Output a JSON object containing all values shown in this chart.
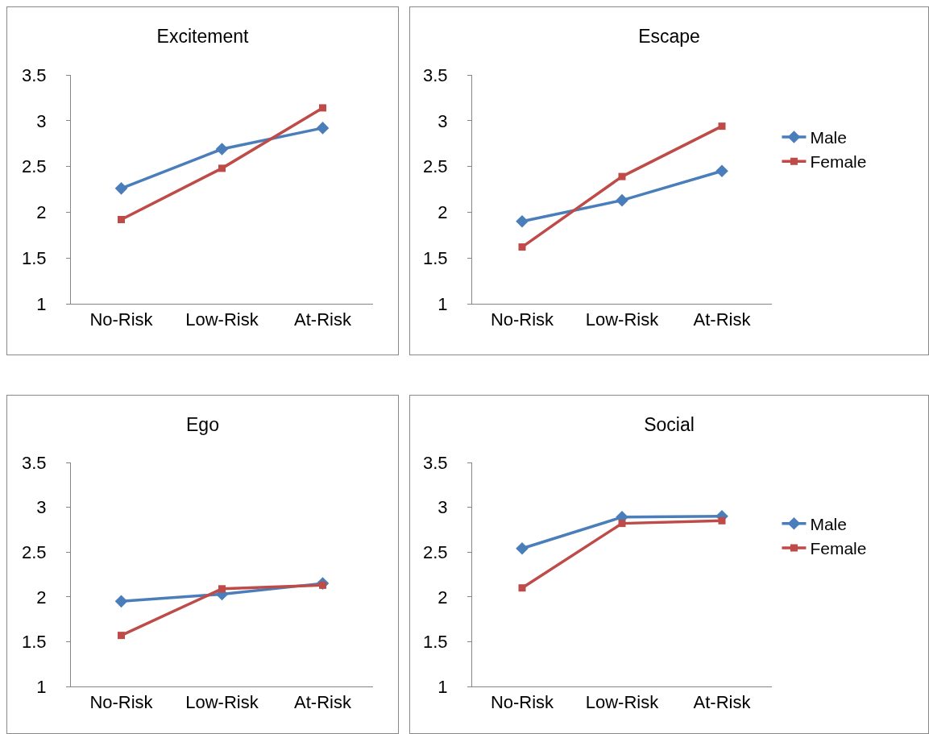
{
  "chart_data": [
    {
      "type": "line",
      "title": "Excitement",
      "categories": [
        "No-Risk",
        "Low-Risk",
        "At-Risk"
      ],
      "ylim": [
        1,
        3.5
      ],
      "yticks": [
        1,
        1.5,
        2,
        2.5,
        3,
        3.5
      ],
      "grid": false,
      "legend": false,
      "series": [
        {
          "color": "#4a7ebb",
          "marker": "diamond",
          "values": [
            2.26,
            2.69,
            2.92
          ]
        },
        {
          "color": "#be4b48",
          "marker": "square",
          "values": [
            1.92,
            2.48,
            3.14
          ]
        }
      ]
    },
    {
      "type": "line",
      "title": "Escape",
      "categories": [
        "No-Risk",
        "Low-Risk",
        "At-Risk"
      ],
      "ylim": [
        1,
        3.5
      ],
      "yticks": [
        1,
        1.5,
        2,
        2.5,
        3,
        3.5
      ],
      "grid": false,
      "legend": "right",
      "series": [
        {
          "name": "Male",
          "color": "#4a7ebb",
          "marker": "diamond",
          "values": [
            1.9,
            2.13,
            2.45
          ]
        },
        {
          "name": "Female",
          "color": "#be4b48",
          "marker": "square",
          "values": [
            1.62,
            2.39,
            2.94
          ]
        }
      ]
    },
    {
      "type": "line",
      "title": "Ego",
      "categories": [
        "No-Risk",
        "Low-Risk",
        "At-Risk"
      ],
      "ylim": [
        1,
        3.5
      ],
      "yticks": [
        1,
        1.5,
        2,
        2.5,
        3,
        3.5
      ],
      "grid": false,
      "legend": false,
      "series": [
        {
          "color": "#4a7ebb",
          "marker": "diamond",
          "values": [
            1.95,
            2.03,
            2.15
          ]
        },
        {
          "color": "#be4b48",
          "marker": "square",
          "values": [
            1.57,
            2.09,
            2.13
          ]
        }
      ]
    },
    {
      "type": "line",
      "title": "Social",
      "categories": [
        "No-Risk",
        "Low-Risk",
        "At-Risk"
      ],
      "ylim": [
        1,
        3.5
      ],
      "yticks": [
        1,
        1.5,
        2,
        2.5,
        3,
        3.5
      ],
      "grid": false,
      "legend": "right",
      "series": [
        {
          "name": "Male",
          "color": "#4a7ebb",
          "marker": "diamond",
          "values": [
            2.54,
            2.89,
            2.9
          ]
        },
        {
          "name": "Female",
          "color": "#be4b48",
          "marker": "square",
          "values": [
            2.1,
            2.82,
            2.85
          ]
        }
      ]
    }
  ]
}
